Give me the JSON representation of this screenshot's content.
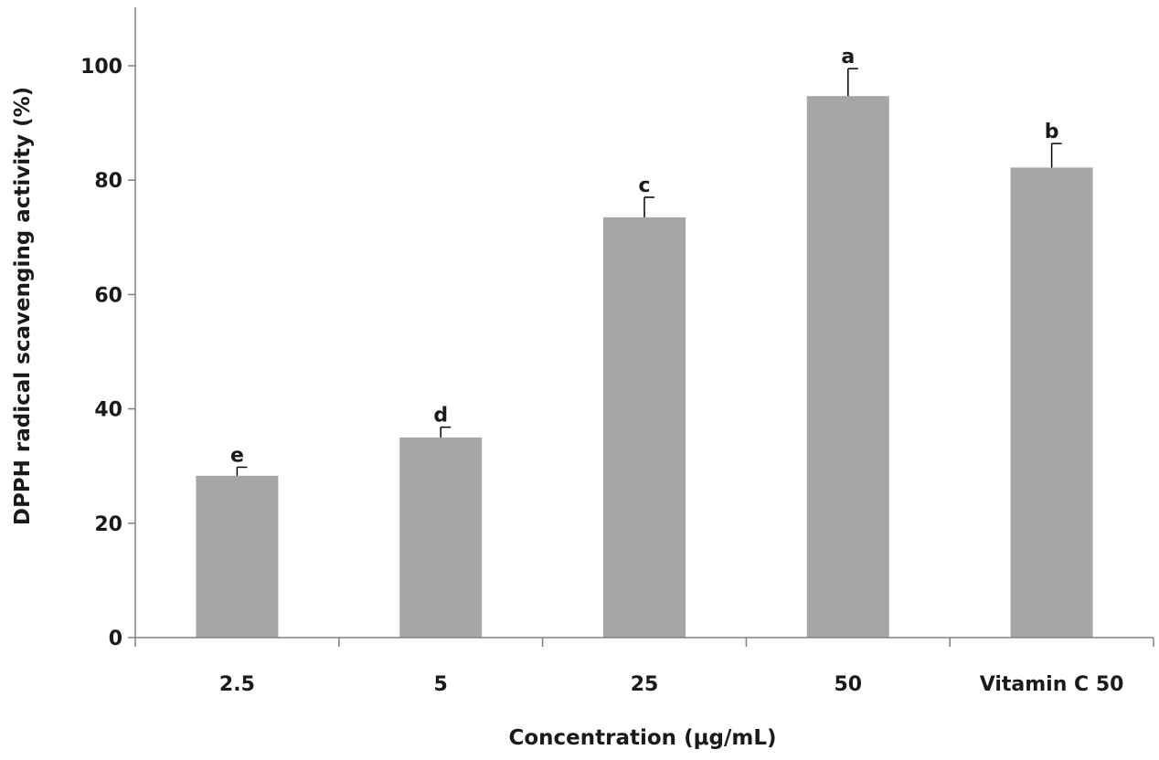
{
  "chart_data": {
    "type": "bar",
    "categories": [
      "2.5",
      "5",
      "25",
      "50",
      "Vitamin C 50"
    ],
    "values": [
      28.3,
      35.0,
      73.5,
      94.7,
      82.2
    ],
    "errors": [
      1.5,
      1.8,
      3.5,
      4.8,
      4.2
    ],
    "significance_labels": [
      "e",
      "d",
      "c",
      "a",
      "b"
    ],
    "xlabel": "Concentration (μg/mL)",
    "ylabel": "DPPH radical scavenging activity (%)",
    "ylim": [
      0,
      100
    ],
    "yticks": [
      0,
      20,
      40,
      60,
      80,
      100
    ],
    "grid": false,
    "bar_color": "#a6a6a6",
    "axis_color": "#808080",
    "text_color": "#1a1a1a"
  }
}
